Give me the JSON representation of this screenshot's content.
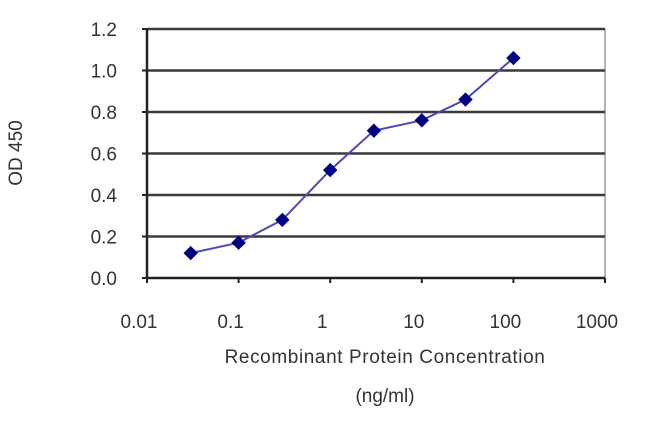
{
  "chart_data": {
    "type": "line",
    "title": "",
    "xlabel": "Recombinant Protein Concentration",
    "xlabel_unit": "(ng/ml)",
    "ylabel": "OD 450",
    "xscale": "log",
    "xlim": [
      0.01,
      1000
    ],
    "ylim": [
      0.0,
      1.2
    ],
    "grid": "horizontal",
    "legend": "none",
    "x_tick_labels": [
      "0.01",
      "0.1",
      "1",
      "10",
      "100",
      "1000"
    ],
    "x_ticks": [
      0.01,
      0.1,
      1,
      10,
      100,
      1000
    ],
    "y_tick_labels": [
      "0.0",
      "0.2",
      "0.4",
      "0.6",
      "0.8",
      "1.0",
      "1.2"
    ],
    "y_ticks": [
      0.0,
      0.2,
      0.4,
      0.6,
      0.8,
      1.0,
      1.2
    ],
    "series": [
      {
        "name": "OD 450",
        "color": "#000080",
        "line_color": "#4a4ab8",
        "marker": "diamond",
        "x": [
          0.03,
          0.1,
          0.3,
          1,
          3,
          10,
          30,
          100
        ],
        "values": [
          0.12,
          0.17,
          0.28,
          0.52,
          0.71,
          0.76,
          0.86,
          1.06
        ]
      }
    ]
  }
}
